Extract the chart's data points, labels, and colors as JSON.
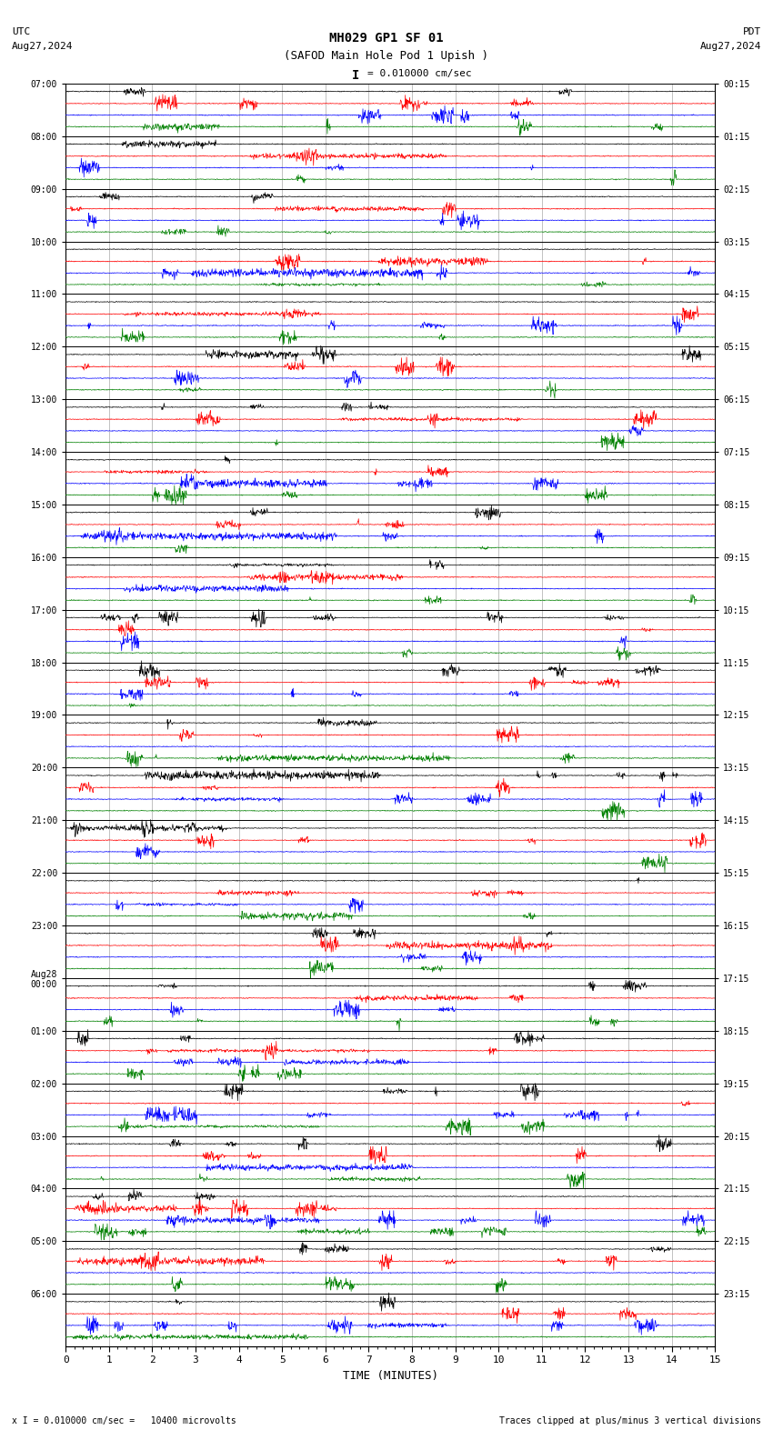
{
  "title_line1": "MH029 GP1 SF 01",
  "title_line2": "(SAFOD Main Hole Pod 1 Upish )",
  "scale_label": "I = 0.010000 cm/sec",
  "left_header": "UTC",
  "left_date": "Aug27,2024",
  "right_header": "PDT",
  "right_date": "Aug27,2024",
  "bottom_label": "TIME (MINUTES)",
  "footer_left": "x I = 0.010000 cm/sec =   10400 microvolts",
  "footer_right": "Traces clipped at plus/minus 3 vertical divisions",
  "xlim": [
    0,
    15
  ],
  "num_rows": 24,
  "traces_per_row": 4,
  "trace_colors": [
    "black",
    "red",
    "blue",
    "green"
  ],
  "bg_color": "white",
  "grid_color": "#aaaaaa",
  "left_times": [
    "07:00",
    "08:00",
    "09:00",
    "10:00",
    "11:00",
    "12:00",
    "13:00",
    "14:00",
    "15:00",
    "16:00",
    "17:00",
    "18:00",
    "19:00",
    "20:00",
    "21:00",
    "22:00",
    "23:00",
    "Aug28\n00:00",
    "01:00",
    "02:00",
    "03:00",
    "04:00",
    "05:00",
    "06:00"
  ],
  "right_times": [
    "00:15",
    "01:15",
    "02:15",
    "03:15",
    "04:15",
    "05:15",
    "06:15",
    "07:15",
    "08:15",
    "09:15",
    "10:15",
    "11:15",
    "12:15",
    "13:15",
    "14:15",
    "15:15",
    "16:15",
    "17:15",
    "18:15",
    "19:15",
    "20:15",
    "21:15",
    "22:15",
    "23:15"
  ]
}
